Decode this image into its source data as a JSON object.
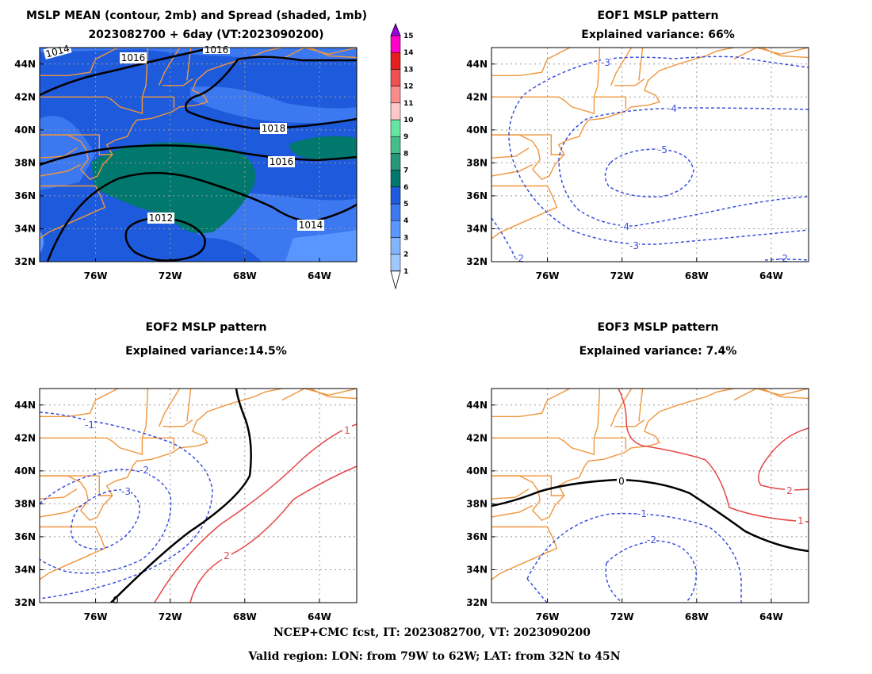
{
  "chart_data": [
    {
      "type": "contour",
      "title_line1": "MSLP MEAN (contour, 2mb) and Spread (shaded, 1mb)",
      "title_line2": "2023082700 + 6day (VT:2023090200)",
      "lon_range": [
        -79,
        -62
      ],
      "lat_range": [
        32,
        45
      ],
      "x_ticks": [
        "76W",
        "72W",
        "68W",
        "64W"
      ],
      "y_ticks": [
        "32N",
        "34N",
        "36N",
        "38N",
        "40N",
        "42N",
        "44N"
      ],
      "contour_labels": [
        "1012",
        "1014",
        "1016",
        "1016",
        "1016",
        "1018",
        "1014"
      ],
      "colorbar_levels": [
        "1",
        "2",
        "3",
        "4",
        "5",
        "6",
        "7",
        "8",
        "9",
        "10",
        "11",
        "12",
        "13",
        "14",
        "15"
      ],
      "colorbar_colors": [
        "#a0c8ff",
        "#82b4ff",
        "#5a96ff",
        "#3c78f0",
        "#1e5adc",
        "#00786e",
        "#289678",
        "#46be8c",
        "#64e6a0",
        "#ffc8c8",
        "#fa8c8c",
        "#f05050",
        "#e61e1e",
        "#ff00c8",
        "#9600e6"
      ],
      "grid": true
    },
    {
      "type": "contour",
      "title_line1": "EOF1 MSLP pattern",
      "title_line2": "Explained variance: 66%",
      "x_ticks": [
        "76W",
        "72W",
        "68W",
        "64W"
      ],
      "y_ticks": [
        "32N",
        "34N",
        "36N",
        "38N",
        "40N",
        "42N",
        "44N"
      ],
      "contour_labels": [
        "-3",
        "-4",
        "-5",
        "-4",
        "-3",
        "-2",
        "-2"
      ],
      "grid": true
    },
    {
      "type": "contour",
      "title_line1": "EOF2 MSLP pattern",
      "title_line2": "Explained variance:14.5%",
      "x_ticks": [
        "76W",
        "72W",
        "68W",
        "64W"
      ],
      "y_ticks": [
        "32N",
        "34N",
        "36N",
        "38N",
        "40N",
        "42N",
        "44N"
      ],
      "contour_labels": [
        "-1",
        "-2",
        "-3",
        "0",
        "1",
        "2"
      ],
      "grid": true
    },
    {
      "type": "contour",
      "title_line1": "EOF3 MSLP pattern",
      "title_line2": "Explained variance: 7.4%",
      "x_ticks": [
        "76W",
        "72W",
        "68W",
        "64W"
      ],
      "y_ticks": [
        "32N",
        "34N",
        "36N",
        "38N",
        "40N",
        "42N",
        "44N"
      ],
      "contour_labels": [
        "0",
        "-1",
        "-2",
        "1",
        "2",
        "1"
      ],
      "grid": true
    }
  ],
  "footer": {
    "line1": "NCEP+CMC fcst, IT: 2023082700, VT: 2023090200",
    "line2": "Valid region: LON: from 79W to 62W; LAT: from 32N to 45N"
  },
  "colors": {
    "coast": "#f0963c",
    "neg": "#3c50dc",
    "pos": "#e64646",
    "zero": "#000000"
  }
}
